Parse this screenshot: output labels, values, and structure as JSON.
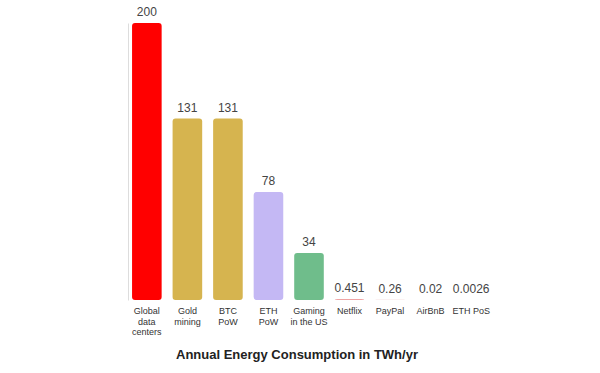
{
  "chart_data": {
    "type": "bar",
    "title": "Annual Energy Consumption in TWh/yr",
    "categories": [
      "Global data centers",
      "Gold mining",
      "BTC PoW",
      "ETH PoW",
      "Gaming in the US",
      "Netflix",
      "PayPal",
      "AirBnB",
      "ETH PoS"
    ],
    "values": [
      200,
      131,
      131,
      78,
      34,
      0.451,
      0.26,
      0.02,
      0.0026
    ],
    "colors": [
      "#ff0000",
      "#d6b44f",
      "#d6b44f",
      "#c4b8f4",
      "#6fbd8b",
      "#e04848",
      "#f0c8c8",
      "#e6e6e6",
      "#e6e6e6"
    ],
    "ylim": [
      0,
      200
    ],
    "data_labels": true,
    "tick_labels": "x",
    "grid": false
  }
}
